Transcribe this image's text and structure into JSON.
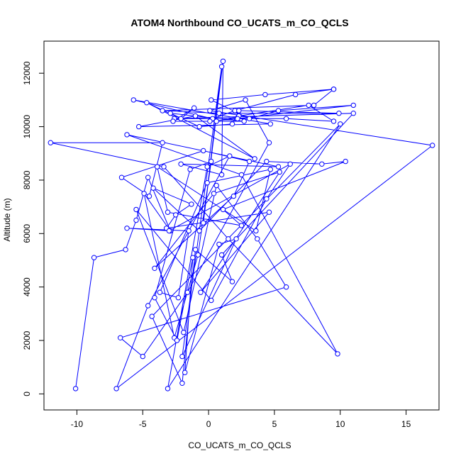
{
  "chart_data": {
    "type": "line",
    "title": "ATOM4 Northbound CO_UCATS_m_CO_QCLS",
    "xlabel": "CO_UCATS_m_CO_QCLS",
    "ylabel": "Altitude (m)",
    "xlim": [
      -12.5,
      17.5
    ],
    "ylim": [
      -600,
      13200
    ],
    "xticks": [
      -10,
      -5,
      0,
      5,
      10,
      15
    ],
    "yticks": [
      0,
      2000,
      4000,
      6000,
      8000,
      10000,
      12000
    ],
    "xtick_labels": [
      "-10",
      "-5",
      "0",
      "5",
      "10",
      "15"
    ],
    "ytick_labels": [
      "0",
      "2000",
      "4000",
      "6000",
      "8000",
      "10000",
      "12000"
    ],
    "grid": false,
    "legend": "none",
    "colors": {
      "series": "#0000ff",
      "axis": "#000000",
      "background": "#ffffff"
    },
    "series": [
      {
        "marker": "open-circle",
        "x": [
          -10.1,
          -8.7,
          -6.3,
          -5.5,
          -4.6,
          -2.9,
          -4.9,
          -2.6,
          -0.8,
          0.2,
          -1.4,
          -4.1,
          -2.4,
          -1.2,
          -1.8,
          0.8,
          2.1,
          -2.0,
          1.0,
          -0.4,
          1.1,
          1.0,
          -2.1,
          5.3,
          -6.2,
          2.5,
          9.8,
          1.5,
          -3.4,
          -12.0,
          -3.5,
          -4.5,
          -6.6,
          -0.4,
          3.1,
          1.9,
          -4.1,
          0.4,
          5.4,
          -0.6,
          4.6,
          -3.2,
          -2.5,
          -1.3,
          -4.2,
          -0.7,
          4.4,
          8.6,
          10.4,
          1.1,
          2.5,
          -3.1,
          -3.9,
          3.6,
          4.7,
          -0.1,
          -3.7,
          -2.3,
          -1.5,
          -6.2,
          -3.0,
          6.2,
          4.4,
          0.2,
          -5.5,
          -1.9,
          0.6,
          3.7,
          5.9,
          -6.7,
          -5.0,
          -1.6,
          4.6,
          2.8,
          0.1,
          17.0,
          -7.0,
          -4.6,
          1.6,
          -0.1,
          -3.1,
          10.0,
          -4.3,
          -2.0,
          -1.0,
          1.8,
          1.0,
          11.0,
          -2.6,
          5.9,
          9.5,
          7.6,
          2.3,
          0.6,
          -2.7,
          -1.1,
          -2.1,
          -4.7,
          3.5,
          -1.0,
          -5.3,
          4.7,
          -5.7,
          0.3,
          2.0,
          6.6,
          9.5,
          4.3,
          0.2,
          3.1,
          5.3,
          11.0,
          2.2,
          0.1,
          2.7,
          -2.9,
          -0.7,
          1.8,
          2.3,
          9.9,
          0.8,
          -3.5,
          8.0,
          9.5
        ],
        "y": [
          200,
          5100,
          5400,
          6500,
          8100,
          6100,
          7500,
          2100,
          5200,
          8700,
          8400,
          3600,
          2000,
          5100,
          800,
          5600,
          5800,
          1400,
          12250,
          6400,
          12450,
          8200,
          8600,
          8500,
          9700,
          8200,
          1500,
          5800,
          8500,
          9400,
          9400,
          7400,
          8100,
          9100,
          8700,
          7400,
          4700,
          7500,
          8300,
          3800,
          6800,
          6200,
          6700,
          7100,
          7700,
          6100,
          8700,
          8600,
          8700,
          6900,
          6300,
          6800,
          8500,
          6100,
          8400,
          7900,
          3800,
          3600,
          6100,
          6200,
          6100,
          8600,
          7300,
          3500,
          6900,
          2300,
          7800,
          5800,
          4000,
          2100,
          1400,
          3800,
          9400,
          11000,
          10600,
          9300,
          200,
          3300,
          8900,
          8500,
          200,
          10100,
          2900,
          400,
          5400,
          4200,
          5200,
          10500,
          10300,
          10300,
          10200,
          10800,
          10400,
          10200,
          10200,
          10700,
          10300,
          10900,
          8800,
          10400,
          10000,
          10100,
          11000,
          10300,
          10600,
          11200,
          11400,
          11200,
          11000,
          10300,
          10600,
          10800,
          10300,
          10200,
          10200,
          10500,
          10000,
          10100,
          10600,
          10500,
          10500,
          10600,
          10800,
          11400
        ]
      }
    ]
  }
}
